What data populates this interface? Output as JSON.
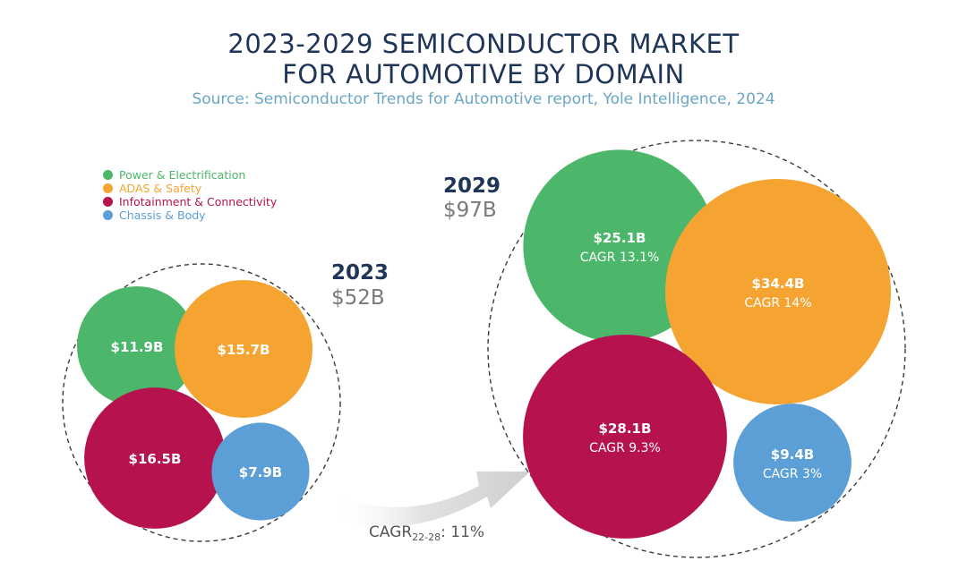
{
  "title_lines": [
    "2023-2029 SEMICONDUCTOR MARKET",
    "FOR AUTOMOTIVE BY DOMAIN"
  ],
  "source": "Source: Semiconductor Trends for Automotive report, Yole Intelligence, 2024",
  "legend": [
    {
      "label": "Power & Electrification",
      "color": "#4cb76a"
    },
    {
      "label": "ADAS & Safety",
      "color": "#f5a431"
    },
    {
      "label": "Infotainment & Connectivity",
      "color": "#b5124e"
    },
    {
      "label": "Chassis & Body",
      "color": "#5b9fd6"
    }
  ],
  "growth": {
    "label": "CAGR",
    "subscript": "22-28",
    "value": ": 11%"
  },
  "chart_data": {
    "type": "bubble",
    "title": "2023-2029 SEMICONDUCTOR MARKET FOR AUTOMOTIVE BY DOMAIN",
    "groups": [
      {
        "year": "2023",
        "total": "$52B",
        "items": [
          {
            "domain": "Power & Electrification",
            "value": 11.9,
            "label": "$11.9B",
            "cagr": ""
          },
          {
            "domain": "ADAS & Safety",
            "value": 15.7,
            "label": "$15.7B",
            "cagr": ""
          },
          {
            "domain": "Infotainment & Connectivity",
            "value": 16.5,
            "label": "$16.5B",
            "cagr": ""
          },
          {
            "domain": "Chassis & Body",
            "value": 7.9,
            "label": "$7.9B",
            "cagr": ""
          }
        ]
      },
      {
        "year": "2029",
        "total": "$97B",
        "items": [
          {
            "domain": "Power & Electrification",
            "value": 25.1,
            "label": "$25.1B",
            "cagr": "CAGR 13.1%"
          },
          {
            "domain": "ADAS & Safety",
            "value": 34.4,
            "label": "$34.4B",
            "cagr": "CAGR 14%"
          },
          {
            "domain": "Infotainment & Connectivity",
            "value": 28.1,
            "label": "$28.1B",
            "cagr": "CAGR 9.3%"
          },
          {
            "domain": "Chassis & Body",
            "value": 9.4,
            "label": "$9.4B",
            "cagr": "CAGR 3%"
          }
        ]
      }
    ]
  }
}
